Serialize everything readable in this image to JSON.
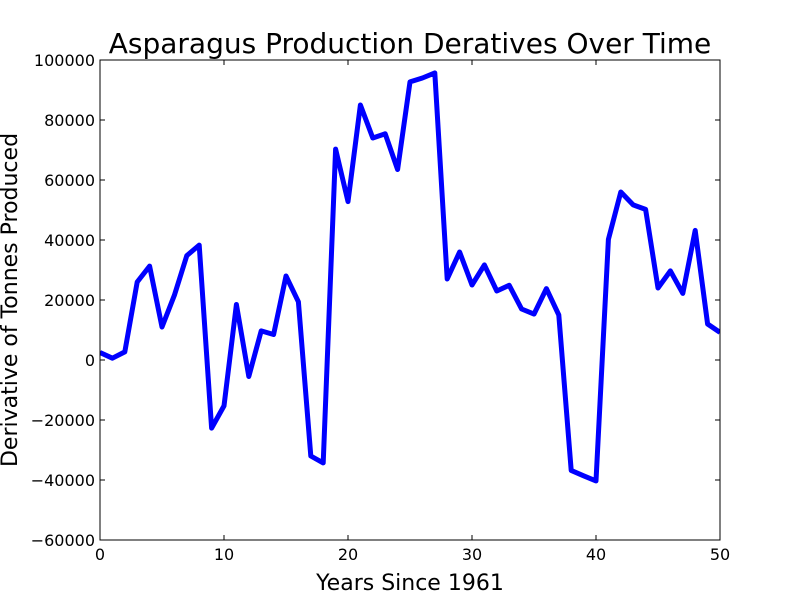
{
  "chart_data": {
    "type": "line",
    "title": "Asparagus Production Deratives Over Time",
    "xlabel": "Years Since 1961",
    "ylabel": "Derivative of Tonnes Produced",
    "xlim": [
      0,
      50
    ],
    "ylim": [
      -60000,
      100000
    ],
    "xticks": [
      0,
      10,
      20,
      30,
      40,
      50
    ],
    "xtick_labels": [
      "0",
      "10",
      "20",
      "30",
      "40",
      "50"
    ],
    "yticks": [
      -60000,
      -40000,
      -20000,
      0,
      20000,
      40000,
      60000,
      80000,
      100000
    ],
    "ytick_labels": [
      "−60000",
      "−40000",
      "−20000",
      "0",
      "20000",
      "40000",
      "60000",
      "80000",
      "100000"
    ],
    "grid": false,
    "series": [
      {
        "color": "#0000ff",
        "x": [
          0,
          1,
          2,
          3,
          4,
          5,
          6,
          7,
          8,
          9,
          10,
          11,
          12,
          13,
          14,
          15,
          16,
          17,
          18,
          19,
          20,
          21,
          22,
          23,
          24,
          25,
          26,
          27,
          28,
          29,
          30,
          31,
          32,
          33,
          34,
          35,
          36,
          37,
          38,
          39,
          40,
          41,
          42,
          43,
          44,
          45,
          46,
          47,
          48,
          49,
          50
        ],
        "y": [
          2500,
          600,
          2700,
          26000,
          31300,
          11000,
          21600,
          34800,
          38300,
          -22700,
          -15300,
          18500,
          -5500,
          9700,
          8500,
          28000,
          19400,
          -32000,
          -34300,
          70300,
          52800,
          85000,
          74000,
          75400,
          63500,
          92700,
          94000,
          95700,
          27000,
          36000,
          25000,
          31700,
          23000,
          24900,
          17000,
          15300,
          23800,
          15000,
          -36800,
          -38600,
          -40300,
          40200,
          56000,
          51700,
          50200,
          24000,
          29700,
          22200,
          43200,
          12000,
          9200
        ]
      }
    ]
  }
}
